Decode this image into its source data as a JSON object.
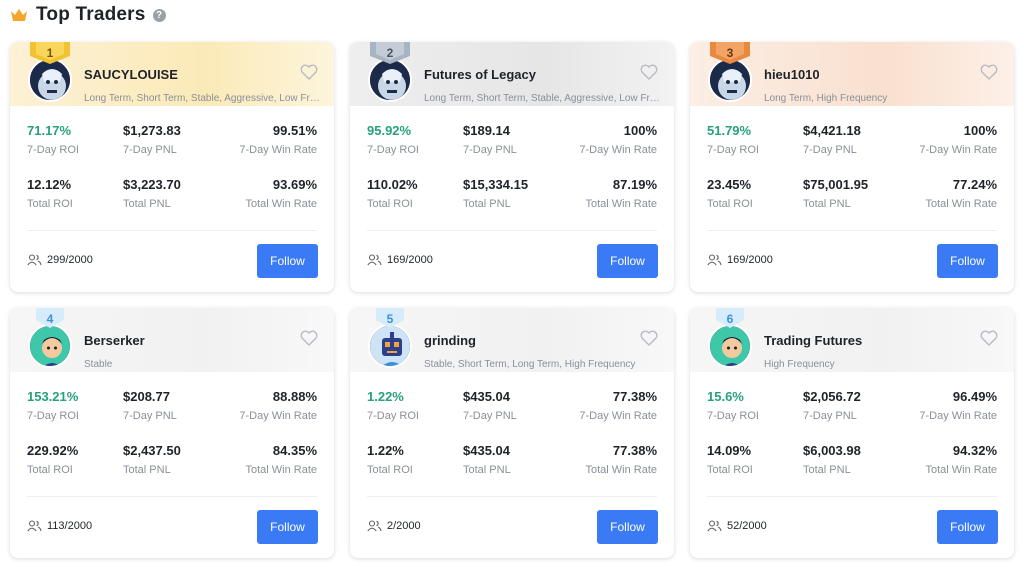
{
  "header": {
    "title": "Top Traders",
    "help_symbol": "?",
    "crown_color": "#f4a52a"
  },
  "labels": {
    "roi7": "7-Day ROI",
    "pnl7": "7-Day PNL",
    "win7": "7-Day Win Rate",
    "roiT": "Total ROI",
    "pnlT": "Total PNL",
    "winT": "Total Win Rate",
    "follow": "Follow"
  },
  "colors": {
    "green": "#26a17b",
    "button": "#3a7bf5"
  },
  "traders": [
    {
      "rank": "1",
      "badge": "gold",
      "name": "SAUCYLOUISE",
      "tags": "Long Term, Short Term, Stable, Aggressive, Low Frequency",
      "roi7": "71.17%",
      "pnl7": "$1,273.83",
      "win7": "99.51%",
      "roiT": "12.12%",
      "pnlT": "$3,223.70",
      "winT": "93.69%",
      "followers": "299/2000"
    },
    {
      "rank": "2",
      "badge": "silver",
      "name": "Futures of Legacy",
      "tags": "Long Term, Short Term, Stable, Aggressive, Low Frequency",
      "roi7": "95.92%",
      "pnl7": "$189.14",
      "win7": "100%",
      "roiT": "110.02%",
      "pnlT": "$15,334.15",
      "winT": "87.19%",
      "followers": "169/2000"
    },
    {
      "rank": "3",
      "badge": "bronze",
      "name": "hieu1010",
      "tags": "Long Term, High Frequency",
      "roi7": "51.79%",
      "pnl7": "$4,421.18",
      "win7": "100%",
      "roiT": "23.45%",
      "pnlT": "$75,001.95",
      "winT": "77.24%",
      "followers": "169/2000"
    },
    {
      "rank": "4",
      "badge": "blue",
      "name": "Berserker",
      "tags": "Stable",
      "roi7": "153.21%",
      "pnl7": "$208.77",
      "win7": "88.88%",
      "roiT": "229.92%",
      "pnlT": "$2,437.50",
      "winT": "84.35%",
      "followers": "113/2000"
    },
    {
      "rank": "5",
      "badge": "blue",
      "name": "grinding",
      "tags": "Stable, Short Term, Long Term, High Frequency",
      "roi7": "1.22%",
      "pnl7": "$435.04",
      "win7": "77.38%",
      "roiT": "1.22%",
      "pnlT": "$435.04",
      "winT": "77.38%",
      "followers": "2/2000"
    },
    {
      "rank": "6",
      "badge": "blue",
      "name": "Trading Futures",
      "tags": "High Frequency",
      "roi7": "15.6%",
      "pnl7": "$2,056.72",
      "win7": "96.49%",
      "roiT": "14.09%",
      "pnlT": "$6,003.98",
      "winT": "94.32%",
      "followers": "52/2000"
    }
  ]
}
